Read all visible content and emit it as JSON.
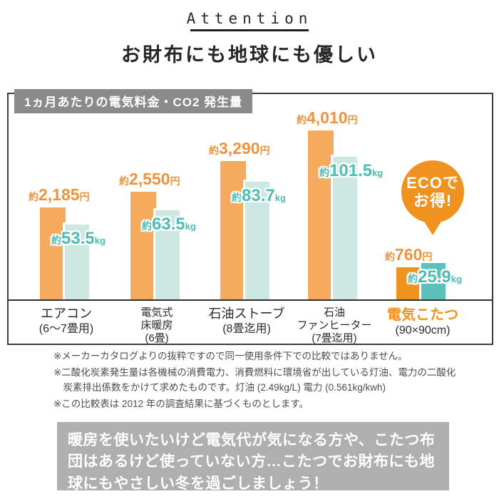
{
  "header": {
    "attention": "Attention",
    "title": "お財布にも地球にも優しい"
  },
  "chart": {
    "panel_title": "1ヵ月あたりの電気料金・CO2 発生量",
    "badge": {
      "line1": "ECOで",
      "line2": "お得!"
    }
  },
  "chart_data": {
    "type": "bar",
    "title": "1ヵ月あたりの電気料金・CO2 発生量",
    "legend": "none",
    "grid": false,
    "numeric_axis_shown": false,
    "categories": [
      {
        "name": "エアコン",
        "lines": [
          "エアコン",
          "(6〜7畳用)"
        ],
        "highlight": false
      },
      {
        "name": "電気式床暖房",
        "lines": [
          "電気式",
          "床暖房",
          "(6畳)"
        ],
        "highlight": false
      },
      {
        "name": "石油ストーブ",
        "lines": [
          "石油ストーブ",
          "(8畳迄用)"
        ],
        "highlight": false
      },
      {
        "name": "石油ファンヒーター",
        "lines": [
          "石油",
          "ファンヒーター",
          "(7畳迄用)"
        ],
        "highlight": false
      },
      {
        "name": "電気こたつ",
        "lines": [
          "電気こたつ",
          "(90×90cm)"
        ],
        "highlight": true
      }
    ],
    "series": [
      {
        "name": "1ヵ月あたりの電気料金",
        "unit": "円",
        "prefix": "約",
        "values": [
          2185,
          2550,
          3290,
          4010,
          760
        ],
        "display": [
          "2,185",
          "2,550",
          "3,290",
          "4,010",
          "760"
        ]
      },
      {
        "name": "1ヵ月あたりのCO2発生量",
        "unit": "kg",
        "prefix": "約",
        "values": [
          53.5,
          63.5,
          83.7,
          101.5,
          25.9
        ],
        "display": [
          "53.5",
          "63.5",
          "83.7",
          "101.5",
          "25.9"
        ]
      }
    ]
  },
  "colors": {
    "bar_cost": "#f5aa5e",
    "bar_cost_highlight": "#f0921e",
    "bar_co2": "#cde7e3",
    "bar_co2_highlight": "#5cc1ba",
    "label_cost": "#f0923c",
    "label_co2": "#4fbcb4",
    "highlight_category": "#f0921e",
    "badge_bg": "#f0921e"
  },
  "footnotes": [
    "※メーカーカタログよりの抜粋ですので同一使用条件下での比較ではありません。",
    "※二酸化炭素発生量は各機械の消費電力、消費燃料に環境省が出している灯油、電力の二酸化炭素排出係数をかけて求めたものです。灯油 (2.49kg/L) 電力 (0.561kg/kwh)",
    "※この比較表は 2012 年の調査結果に基づくものとします。"
  ],
  "bottom_note": "暖房を使いたいけど電気代が気になる方や、こたつ布団はあるけど使っていない方…こたつでお財布にも地球にもやさしい冬を過ごしましょう！"
}
